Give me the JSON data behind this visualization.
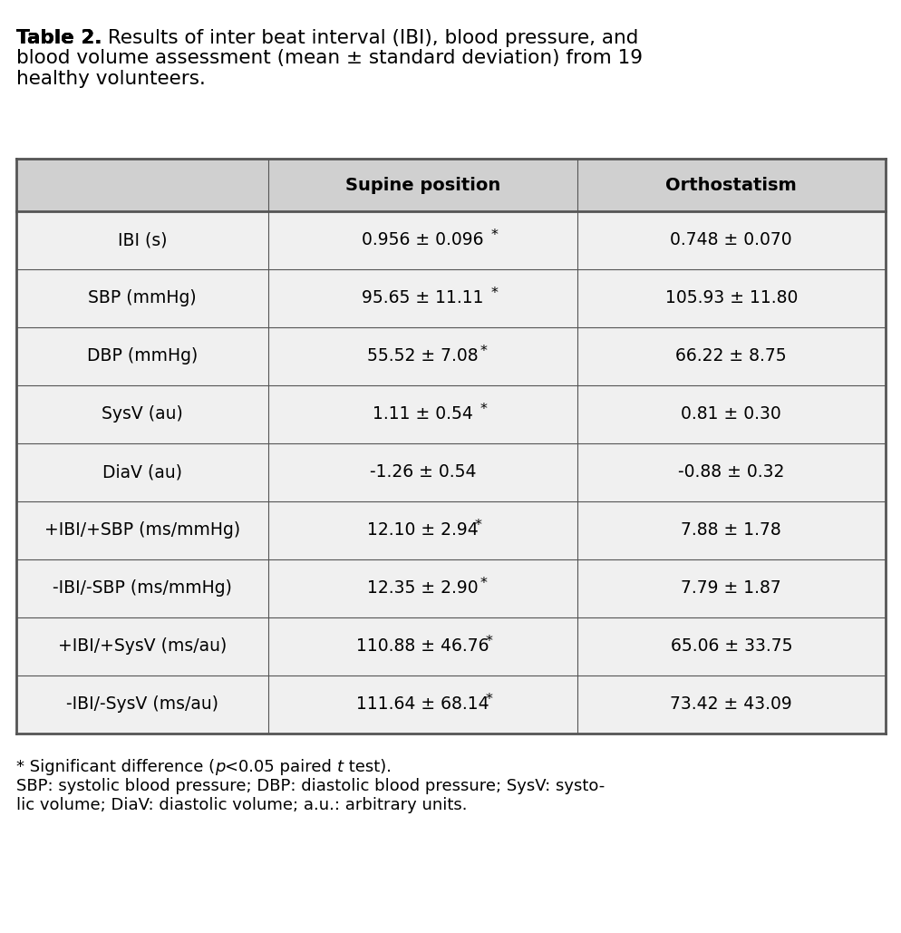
{
  "title_bold": "Table 2.",
  "title_rest": " Results of inter beat interval (IBI), blood pressure, and blood volume assessment (mean ± standard deviation) from 19 healthy volunteers.",
  "col_headers": [
    "",
    "Supine position",
    "Orthostatism"
  ],
  "rows": [
    [
      "IBI (s)",
      "0.956 ± 0.096*",
      "0.748 ± 0.070"
    ],
    [
      "SBP (mmHg)",
      "95.65 ± 11.11*",
      "105.93 ± 11.80"
    ],
    [
      "DBP (mmHg)",
      "55.52 ± 7.08*",
      "66.22 ± 8.75"
    ],
    [
      "SysV (au)",
      "1.11 ± 0.54*",
      "0.81 ± 0.30"
    ],
    [
      "DiaV (au)",
      "-1.26 ± 0.54",
      "-0.88 ± 0.32"
    ],
    [
      "+IBI/+SBP (ms/mmHg)",
      "12.10 ± 2.94*",
      "7.88 ± 1.78"
    ],
    [
      "-IBI/-SBP (ms/mmHg)",
      "12.35 ± 2.90*",
      "7.79 ± 1.87"
    ],
    [
      "+IBI/+SysV (ms/au)",
      "110.88 ± 46.76*",
      "65.06 ± 33.75"
    ],
    [
      "-IBI/-SysV (ms/au)",
      "111.64 ± 68.14*",
      "73.42 ± 43.09"
    ]
  ],
  "footnote1": "* Significant difference (",
  "footnote1_italic": "p",
  "footnote1_rest": "<0.05 paired ",
  "footnote1_italic2": "t",
  "footnote1_end": " test).",
  "footnote2": "SBP: systolic blood pressure; DBP: diastolic blood pressure; SysV: systo-",
  "footnote3": "lic volume; DiaV: diastolic volume; a.u.: arbitrary units.",
  "bg_color": "#f0f0f0",
  "header_bg": "#d0d0d0",
  "white_bg": "#ffffff",
  "border_color": "#555555",
  "text_color": "#000000",
  "title_fontsize": 15.5,
  "header_fontsize": 14,
  "cell_fontsize": 13.5,
  "footnote_fontsize": 13
}
